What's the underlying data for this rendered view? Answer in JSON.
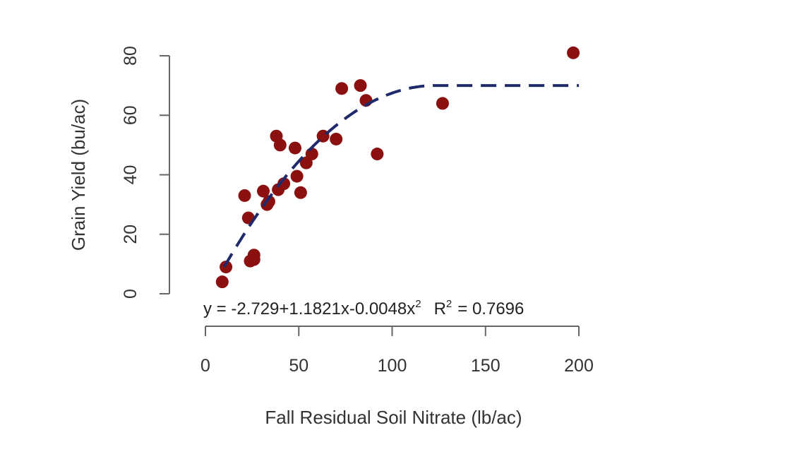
{
  "chart_data": {
    "type": "scatter",
    "xlabel": "Fall Residual Soil Nitrate (lb/ac)",
    "ylabel": "Grain Yield (bu/ac)",
    "xlim": [
      0,
      200
    ],
    "ylim": [
      0,
      80
    ],
    "x_ticks": [
      0,
      50,
      100,
      150,
      200
    ],
    "y_ticks": [
      0,
      20,
      40,
      60,
      80
    ],
    "grid": false,
    "legend": "none",
    "point_color": "#8b1010",
    "trend_color": "#1f2a6b",
    "series": [
      {
        "points": [
          [
            9,
            4
          ],
          [
            11,
            9
          ],
          [
            21,
            33
          ],
          [
            23,
            25.5
          ],
          [
            24,
            11
          ],
          [
            26,
            11.5
          ],
          [
            26,
            13
          ],
          [
            31,
            34.5
          ],
          [
            33,
            30
          ],
          [
            34,
            31
          ],
          [
            38,
            53
          ],
          [
            39,
            35
          ],
          [
            40,
            50
          ],
          [
            42,
            37
          ],
          [
            48,
            49
          ],
          [
            49,
            39.5
          ],
          [
            51,
            34
          ],
          [
            54,
            44
          ],
          [
            57,
            47
          ],
          [
            63,
            53
          ],
          [
            70,
            52
          ],
          [
            73,
            69
          ],
          [
            83,
            70
          ],
          [
            86,
            65
          ],
          [
            92,
            47
          ],
          [
            127,
            64
          ],
          [
            197,
            81
          ]
        ]
      }
    ],
    "trendline": {
      "type": "quadratic-plateau",
      "x_range": [
        10,
        200
      ],
      "plateau_x": 123,
      "plateau_y": 70
    },
    "annotation": {
      "equation_main": "y = -2.729+1.1821x-0.0048x",
      "equation_exp": "2",
      "r_label": "R",
      "r_exp": "2",
      "r_value": "= 0.7696"
    }
  }
}
